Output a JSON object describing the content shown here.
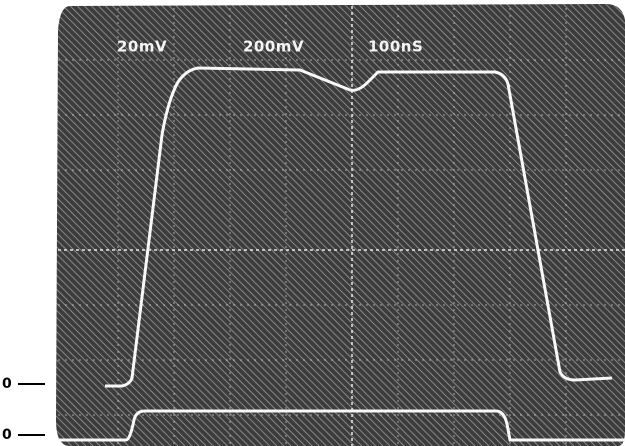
{
  "screen": {
    "readouts": [
      "20mV",
      "200mV",
      "100nS"
    ]
  },
  "markers": [
    "0",
    "0"
  ]
}
